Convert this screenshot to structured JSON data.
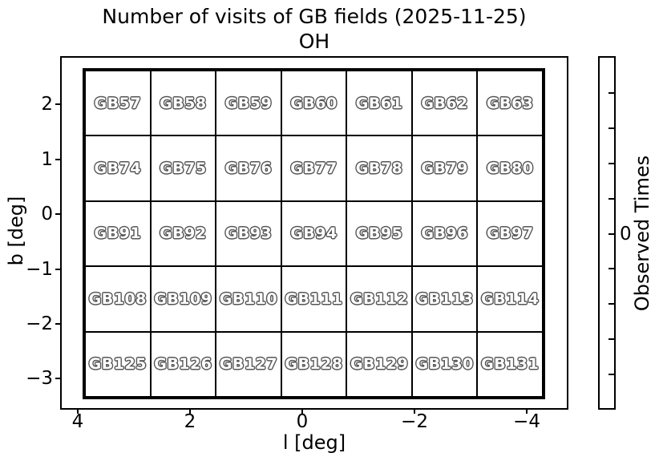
{
  "title": {
    "line1": "Number of visits of GB fields (2025-11-25)",
    "line2": "OH"
  },
  "axes": {
    "xlabel": "l [deg]",
    "ylabel": "b [deg]",
    "x_tick_labels": [
      "4",
      "2",
      "0",
      "−2",
      "−4"
    ],
    "y_tick_labels": [
      "2",
      "1",
      "0",
      "−1",
      "−2",
      "−3"
    ]
  },
  "grid": {
    "rows": [
      [
        "GB57",
        "GB58",
        "GB59",
        "GB60",
        "GB61",
        "GB62",
        "GB63"
      ],
      [
        "GB74",
        "GB75",
        "GB76",
        "GB77",
        "GB78",
        "GB79",
        "GB80"
      ],
      [
        "GB91",
        "GB92",
        "GB93",
        "GB94",
        "GB95",
        "GB96",
        "GB97"
      ],
      [
        "GB108",
        "GB109",
        "GB110",
        "GB111",
        "GB112",
        "GB113",
        "GB114"
      ],
      [
        "GB125",
        "GB126",
        "GB127",
        "GB128",
        "GB129",
        "GB130",
        "GB131"
      ]
    ]
  },
  "colorbar": {
    "label": "Observed Times",
    "tick_label": "0",
    "n_ticks": 9
  },
  "colors": {
    "line": "#000000",
    "cell_fill": "#ffffff",
    "cell_label_fill": "#ffffff",
    "cell_label_outline": "#555555",
    "background": "#ffffff"
  },
  "chart_data": {
    "type": "heatmap",
    "title": "Number of visits of GB fields (2025-11-25)",
    "subtitle": "OH",
    "xlabel": "l [deg]",
    "ylabel": "b [deg]",
    "x_tick_labels": [
      "4",
      "2",
      "0",
      "−2",
      "−4"
    ],
    "y_tick_labels": [
      "2",
      "1",
      "0",
      "−1",
      "−2",
      "−3"
    ],
    "x_axis_inverted": true,
    "grid_on": false,
    "legend": "none",
    "colorbar_label": "Observed Times",
    "colorbar_tick_labels": [
      "0"
    ],
    "cell_size_deg": 1.2,
    "l_centers": [
      3.33,
      2.16,
      0.99,
      -0.2,
      -1.37,
      -2.54,
      -3.71
    ],
    "b_centers": [
      2.06,
      0.85,
      -0.35,
      -1.56,
      -2.76
    ],
    "series": [
      {
        "name": "row_b_2.06",
        "fields": [
          "GB57",
          "GB58",
          "GB59",
          "GB60",
          "GB61",
          "GB62",
          "GB63"
        ],
        "observed_times": [
          0,
          0,
          0,
          0,
          0,
          0,
          0
        ]
      },
      {
        "name": "row_b_0.85",
        "fields": [
          "GB74",
          "GB75",
          "GB76",
          "GB77",
          "GB78",
          "GB79",
          "GB80"
        ],
        "observed_times": [
          0,
          0,
          0,
          0,
          0,
          0,
          0
        ]
      },
      {
        "name": "row_b_-0.35",
        "fields": [
          "GB91",
          "GB92",
          "GB93",
          "GB94",
          "GB95",
          "GB96",
          "GB97"
        ],
        "observed_times": [
          0,
          0,
          0,
          0,
          0,
          0,
          0
        ]
      },
      {
        "name": "row_b_-1.56",
        "fields": [
          "GB108",
          "GB109",
          "GB110",
          "GB111",
          "GB112",
          "GB113",
          "GB114"
        ],
        "observed_times": [
          0,
          0,
          0,
          0,
          0,
          0,
          0
        ]
      },
      {
        "name": "row_b_-2.76",
        "fields": [
          "GB125",
          "GB126",
          "GB127",
          "GB128",
          "GB129",
          "GB130",
          "GB131"
        ],
        "observed_times": [
          0,
          0,
          0,
          0,
          0,
          0,
          0
        ]
      }
    ]
  }
}
